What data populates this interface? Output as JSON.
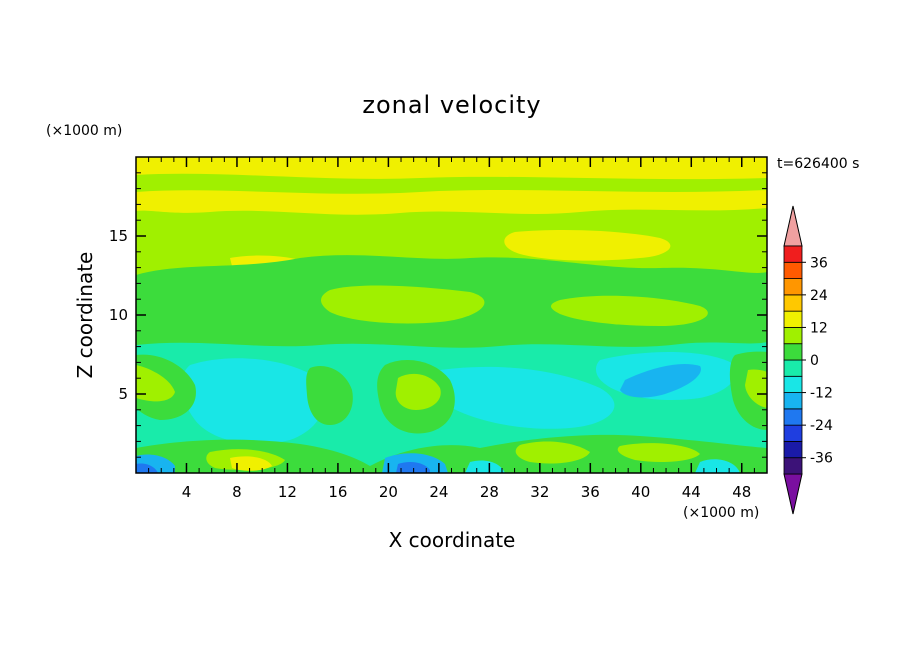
{
  "chart_data": {
    "type": "heatmap",
    "title": "zonal velocity",
    "xlabel": "X coordinate",
    "ylabel": "Z coordinate",
    "x_unit": "(×1000 m)",
    "y_unit": "(×1000 m)",
    "time_label": "t=626400 s",
    "xlim": [
      0,
      50
    ],
    "ylim": [
      0,
      20
    ],
    "xticks": [
      4,
      8,
      12,
      16,
      20,
      24,
      28,
      32,
      36,
      40,
      44,
      48
    ],
    "yticks": [
      5,
      10,
      15
    ],
    "colorbar": {
      "levels": [
        -42,
        -36,
        -30,
        -24,
        -18,
        -12,
        -6,
        0,
        6,
        12,
        18,
        24,
        30,
        36,
        42
      ],
      "tick_labels": [
        36,
        24,
        12,
        0,
        -12,
        -24,
        -36
      ],
      "colors": [
        "#7a0fa0",
        "#3c1278",
        "#1a1aa8",
        "#1f3ee0",
        "#1f78f0",
        "#18b4f0",
        "#19e6e6",
        "#19ebaa",
        "#3cdc3c",
        "#a0f000",
        "#f0f000",
        "#ffc800",
        "#ff9600",
        "#ff5a00",
        "#f01e1e",
        "#f0a0a0"
      ]
    },
    "field_extremes": {
      "min": -18,
      "max": 18
    },
    "grid": false
  }
}
